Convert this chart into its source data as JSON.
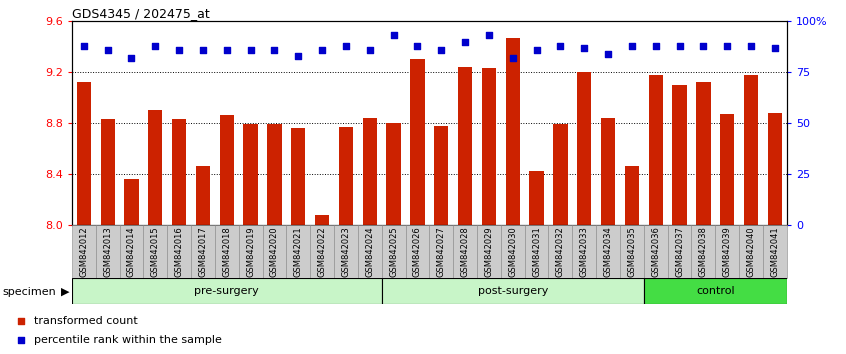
{
  "title": "GDS4345 / 202475_at",
  "categories": [
    "GSM842012",
    "GSM842013",
    "GSM842014",
    "GSM842015",
    "GSM842016",
    "GSM842017",
    "GSM842018",
    "GSM842019",
    "GSM842020",
    "GSM842021",
    "GSM842022",
    "GSM842023",
    "GSM842024",
    "GSM842025",
    "GSM842026",
    "GSM842027",
    "GSM842028",
    "GSM842029",
    "GSM842030",
    "GSM842031",
    "GSM842032",
    "GSM842033",
    "GSM842034",
    "GSM842035",
    "GSM842036",
    "GSM842037",
    "GSM842038",
    "GSM842039",
    "GSM842040",
    "GSM842041"
  ],
  "bar_values": [
    9.12,
    8.83,
    8.36,
    8.9,
    8.83,
    8.46,
    8.86,
    8.79,
    8.79,
    8.76,
    8.08,
    8.77,
    8.84,
    8.8,
    9.3,
    8.78,
    9.24,
    9.23,
    9.47,
    8.42,
    8.79,
    9.2,
    8.84,
    8.46,
    9.18,
    9.1,
    9.12,
    8.87,
    9.18,
    8.88
  ],
  "percentile_values": [
    88,
    86,
    82,
    88,
    86,
    86,
    86,
    86,
    86,
    83,
    86,
    88,
    86,
    93,
    88,
    86,
    90,
    93,
    82,
    86,
    88,
    87,
    84,
    88,
    88,
    88,
    88,
    88,
    88,
    87
  ],
  "groups": [
    {
      "label": "pre-surgery",
      "start": 0,
      "end": 13,
      "color": "#C8F5C8"
    },
    {
      "label": "post-surgery",
      "start": 13,
      "end": 24,
      "color": "#C8F5C8"
    },
    {
      "label": "control",
      "start": 24,
      "end": 30,
      "color": "#44DD44"
    }
  ],
  "ylim": [
    8.0,
    9.6
  ],
  "ylim_right": [
    0,
    100
  ],
  "yticks_left": [
    8.0,
    8.4,
    8.8,
    9.2,
    9.6
  ],
  "yticks_right": [
    0,
    25,
    50,
    75,
    100
  ],
  "ytick_labels_right": [
    "0",
    "25",
    "50",
    "75",
    "100%"
  ],
  "bar_color": "#CC2200",
  "dot_color": "#0000CC",
  "bar_width": 0.6,
  "grid_lines": [
    8.4,
    8.8,
    9.2
  ],
  "legend_items": [
    {
      "label": "transformed count",
      "color": "#CC2200"
    },
    {
      "label": "percentile rank within the sample",
      "color": "#0000CC"
    }
  ],
  "tick_bg_color": "#CCCCCC",
  "group_border_color": "#000000"
}
